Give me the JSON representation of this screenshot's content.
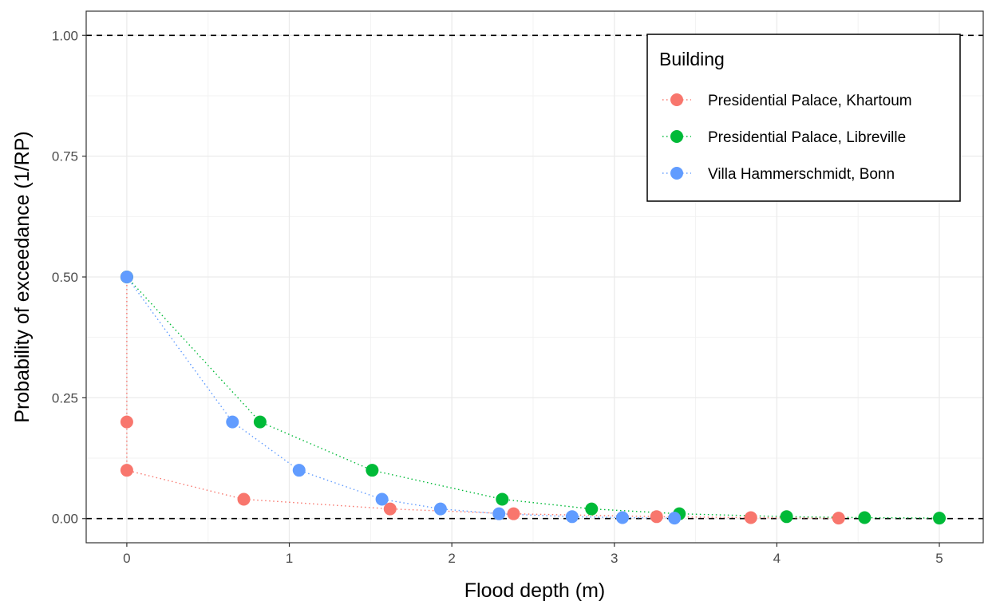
{
  "chart_data": {
    "type": "scatter",
    "xlabel": "Flood depth (m)",
    "ylabel": "Probability of exceedance (1/RP)",
    "xlim": [
      -0.25,
      5.27
    ],
    "ylim": [
      -0.05,
      1.05
    ],
    "x_ticks": [
      0,
      1,
      2,
      3,
      4,
      5
    ],
    "x_tick_labels": [
      "0",
      "1",
      "2",
      "3",
      "4",
      "5"
    ],
    "y_ticks": [
      0,
      0.25,
      0.5,
      0.75,
      1.0
    ],
    "y_tick_labels": [
      "0.00",
      "0.25",
      "0.50",
      "0.75",
      "1.00"
    ],
    "reference_lines": [
      0,
      1
    ],
    "grid": true,
    "legend": {
      "title": "Building",
      "position": "top-right"
    },
    "series": [
      {
        "name": "Presidential Palace, Khartoum",
        "color": "#F8766D",
        "x": [
          0,
          0,
          0,
          0.72,
          1.62,
          2.38,
          3.26,
          3.84,
          4.38
        ],
        "y": [
          0.5,
          0.2,
          0.1,
          0.04,
          0.02,
          0.01,
          0.004,
          0.002,
          0.001
        ]
      },
      {
        "name": "Presidential Palace, Libreville",
        "color": "#00BA38",
        "x": [
          0,
          0.82,
          1.51,
          2.31,
          2.86,
          3.4,
          4.06,
          4.54,
          5.0
        ],
        "y": [
          0.5,
          0.2,
          0.1,
          0.04,
          0.02,
          0.01,
          0.004,
          0.002,
          0.001
        ]
      },
      {
        "name": "Villa Hammerschmidt, Bonn",
        "color": "#619CFF",
        "x": [
          0,
          0.65,
          1.06,
          1.57,
          1.93,
          2.29,
          2.74,
          3.05,
          3.37
        ],
        "y": [
          0.5,
          0.2,
          0.1,
          0.04,
          0.02,
          0.01,
          0.004,
          0.002,
          0.001
        ]
      }
    ]
  }
}
